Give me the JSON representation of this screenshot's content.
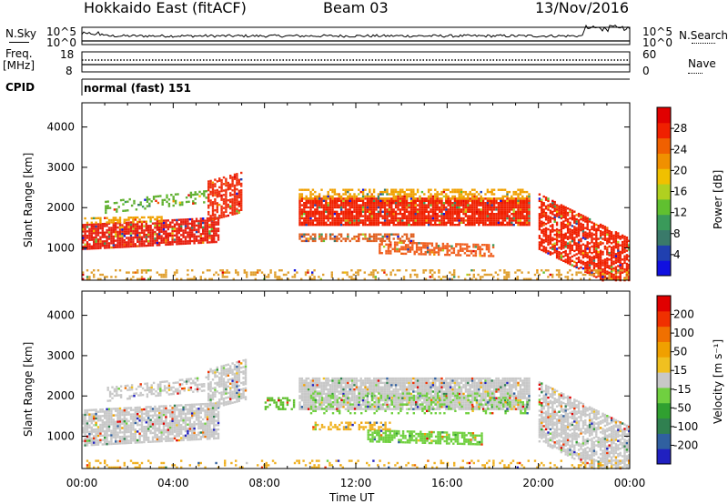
{
  "header": {
    "title": "Hokkaido East (fitACF)",
    "beam": "Beam 03",
    "date": "13/Nov/2016"
  },
  "top_panels": {
    "nsky_label": "N.Sky",
    "nsky_ticks": [
      "10^5",
      "10^0"
    ],
    "nsearch_label": "N.Search",
    "nsearch_ticks": [
      "10^5",
      "10^0"
    ],
    "freq_label_1": "Freq.",
    "freq_label_2": "[MHz]",
    "freq_ticks": [
      "18",
      "8"
    ],
    "nave_label": "Nave",
    "nave_ticks": [
      "60",
      "0"
    ],
    "cpid_label": "CPID",
    "cpid_text": "normal (fast) 151"
  },
  "chart_data": [
    {
      "type": "heatmap",
      "name": "power-panel",
      "ylabel": "Slant Range [km]",
      "y_ticks": [
        1000,
        2000,
        3000,
        4000
      ],
      "ylim": [
        200,
        4600
      ],
      "xlim": [
        0,
        24
      ],
      "colorbar": {
        "label": "Power [dB]",
        "tick_labels": [
          "4",
          "8",
          "12",
          "16",
          "20",
          "24",
          "28"
        ],
        "range": [
          0,
          32
        ],
        "colors": [
          "#1010e0",
          "#2040b0",
          "#3a7a6a",
          "#3a9a5a",
          "#60c030",
          "#b0d020",
          "#f0c000",
          "#f09000",
          "#f06000",
          "#f02000",
          "#e00000"
        ]
      },
      "bands": [
        {
          "t0": 0.0,
          "t1": 6.0,
          "r0": 1000,
          "r1": 1600,
          "slope": 30,
          "color": "#e82010",
          "density": 0.85
        },
        {
          "t0": 0.0,
          "t1": 3.5,
          "r0": 1650,
          "r1": 1800,
          "slope": 10,
          "color": "#f0a000",
          "density": 0.5
        },
        {
          "t0": 1.0,
          "t1": 5.5,
          "r0": 1900,
          "r1": 2200,
          "slope": 60,
          "color": "#60b030",
          "density": 0.35
        },
        {
          "t0": 5.5,
          "t1": 7.0,
          "r0": 1700,
          "r1": 2700,
          "slope": 150,
          "color": "#f03010",
          "density": 0.7
        },
        {
          "t0": 9.5,
          "t1": 19.6,
          "r0": 1600,
          "r1": 2250,
          "slope": 0,
          "color": "#f02000",
          "density": 0.9
        },
        {
          "t0": 9.5,
          "t1": 19.6,
          "r0": 2250,
          "r1": 2500,
          "slope": 0,
          "color": "#f0a000",
          "density": 0.55
        },
        {
          "t0": 9.5,
          "t1": 14.5,
          "r0": 1200,
          "r1": 1400,
          "slope": 0,
          "color": "#e06020",
          "density": 0.6
        },
        {
          "t0": 13.0,
          "t1": 18.0,
          "r0": 900,
          "r1": 1200,
          "slope": -15,
          "color": "#f06020",
          "density": 0.6
        },
        {
          "t0": 20.0,
          "t1": 24.0,
          "r0": 1000,
          "r1": 2400,
          "slope": -280,
          "color": "#f02000",
          "density": 0.75
        },
        {
          "t0": 0.0,
          "t1": 24.0,
          "r0": 200,
          "r1": 500,
          "slope": 0,
          "color": "#e0a030",
          "density": 0.25
        }
      ]
    },
    {
      "type": "heatmap",
      "name": "velocity-panel",
      "ylabel": "Slant Range [km]",
      "xlabel": "Time UT",
      "y_ticks": [
        1000,
        2000,
        3000,
        4000
      ],
      "ylim": [
        200,
        4600
      ],
      "xlim": [
        0,
        24
      ],
      "x_tick_labels": [
        "00:00",
        "04:00",
        "08:00",
        "12:00",
        "16:00",
        "20:00",
        "00:00"
      ],
      "colorbar": {
        "label": "Velocity [m s⁻¹]",
        "tick_labels": [
          "200",
          "100",
          "50",
          "15",
          "-15",
          "-50",
          "-100",
          "-200"
        ],
        "range": [
          -250,
          250
        ],
        "colors": [
          "#2020c0",
          "#3060a0",
          "#308050",
          "#30a030",
          "#70d040",
          "#c8c8c8",
          "#f0c020",
          "#f0a000",
          "#f07000",
          "#f03000",
          "#e00000"
        ]
      },
      "bands": [
        {
          "t0": 0.0,
          "t1": 6.0,
          "r0": 800,
          "r1": 1700,
          "slope": 30,
          "color": "#c8c8c8",
          "density": 0.8
        },
        {
          "t0": 1.0,
          "t1": 5.5,
          "r0": 1900,
          "r1": 2250,
          "slope": 60,
          "color": "#c8c8c8",
          "density": 0.45
        },
        {
          "t0": 5.5,
          "t1": 7.2,
          "r0": 1700,
          "r1": 2700,
          "slope": 150,
          "color": "#c8c8c8",
          "density": 0.7
        },
        {
          "t0": 9.5,
          "t1": 19.6,
          "r0": 1700,
          "r1": 2500,
          "slope": 0,
          "color": "#c8c8c8",
          "density": 0.9
        },
        {
          "t0": 10.0,
          "t1": 19.5,
          "r0": 1600,
          "r1": 2100,
          "slope": 0,
          "color": "#70d040",
          "density": 0.25
        },
        {
          "t0": 12.5,
          "t1": 17.5,
          "r0": 900,
          "r1": 1200,
          "slope": -15,
          "color": "#70d040",
          "density": 0.7
        },
        {
          "t0": 10.0,
          "t1": 13.5,
          "r0": 1200,
          "r1": 1400,
          "slope": 0,
          "color": "#f0b020",
          "density": 0.5
        },
        {
          "t0": 8.0,
          "t1": 9.3,
          "r0": 1700,
          "r1": 2000,
          "slope": 0,
          "color": "#60c030",
          "density": 0.6
        },
        {
          "t0": 20.0,
          "t1": 24.0,
          "r0": 900,
          "r1": 2400,
          "slope": -280,
          "color": "#c8c8c8",
          "density": 0.75
        },
        {
          "t0": 0.0,
          "t1": 24.0,
          "r0": 200,
          "r1": 450,
          "slope": 0,
          "color": "#f0b020",
          "density": 0.2
        }
      ]
    }
  ]
}
